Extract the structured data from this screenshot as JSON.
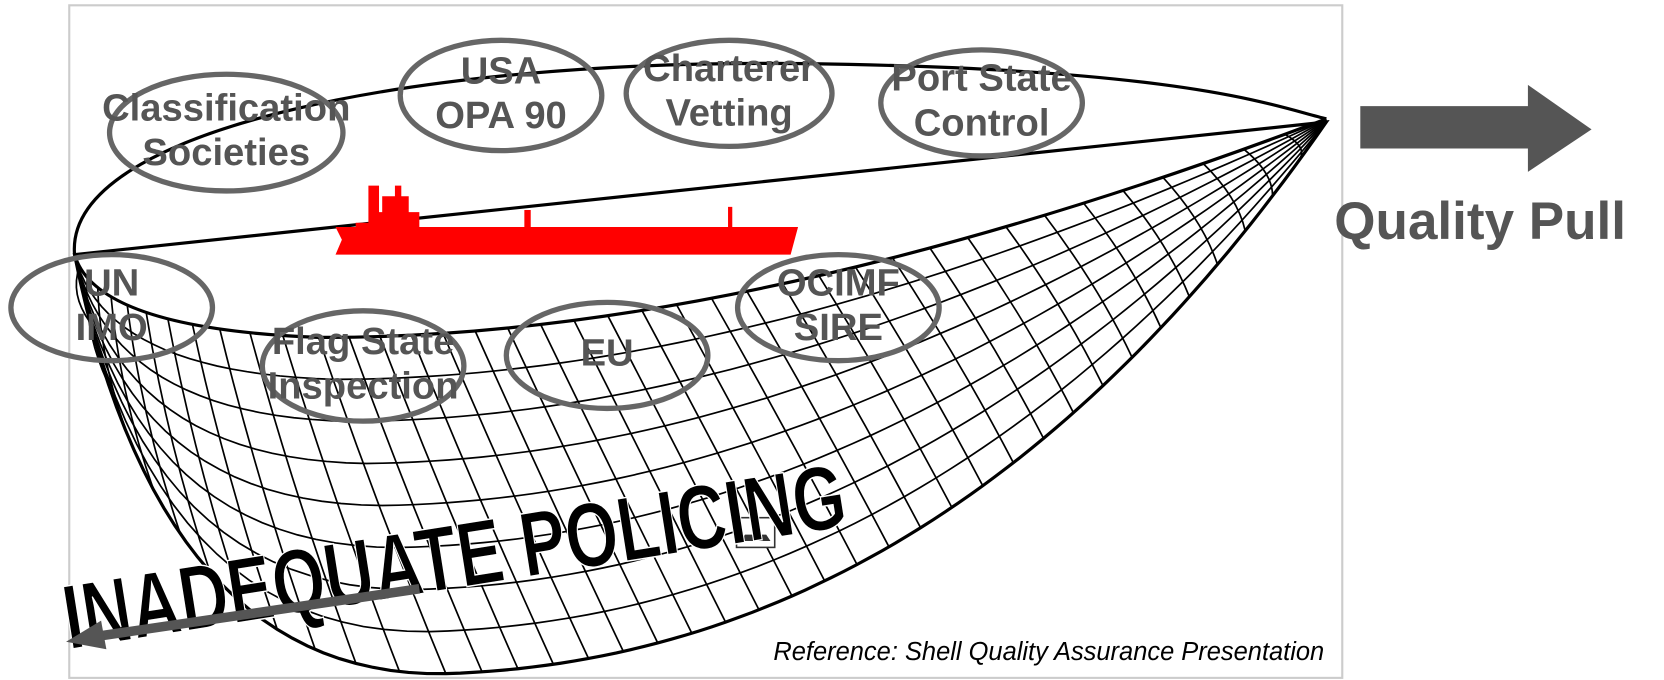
{
  "nodes": [
    {
      "lines": [
        "Classification",
        "Societies"
      ]
    },
    {
      "lines": [
        "USA",
        "OPA 90"
      ]
    },
    {
      "lines": [
        "Charterer",
        "Vetting"
      ]
    },
    {
      "lines": [
        "Port State",
        "Control"
      ]
    },
    {
      "lines": [
        "UN",
        "IMO"
      ]
    },
    {
      "lines": [
        "Flag State",
        "Inspection"
      ]
    },
    {
      "lines": [
        "EU"
      ]
    },
    {
      "lines": [
        "OCIMF",
        "SIRE"
      ]
    }
  ],
  "banner": "INADEQUATE POLICING",
  "arrow_label": "Quality Pull",
  "reference": "Reference: Shell Quality Assurance Presentation"
}
